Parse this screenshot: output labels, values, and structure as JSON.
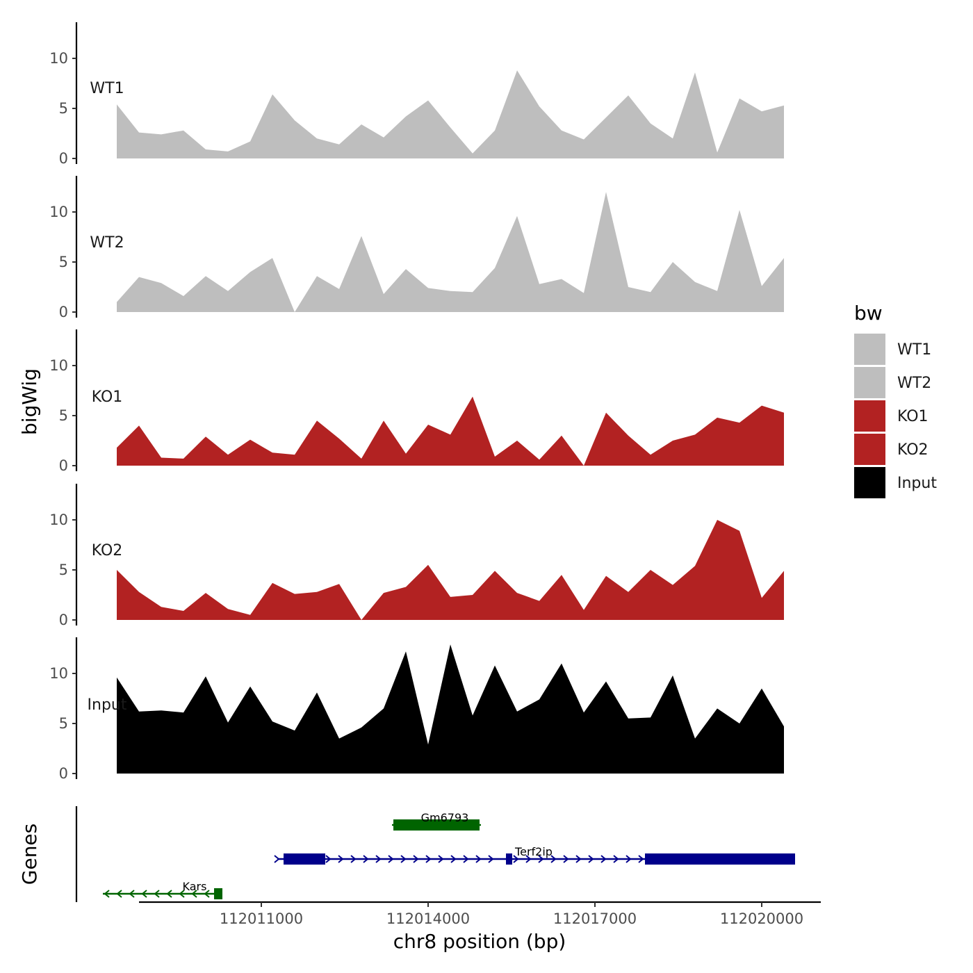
{
  "chart_data": {
    "type": "area",
    "title": "",
    "ylabel": "bigWig",
    "xlabel": "chr8 position (bp)",
    "xlim": [
      112008200,
      112020600
    ],
    "x_ticks": [
      112011000,
      112014000,
      112017000,
      112020000
    ],
    "x_tick_labels": [
      "112011000",
      "112014000",
      "112017000",
      "112020000"
    ],
    "ylim": [
      0,
      13.5
    ],
    "y_ticks": [
      0,
      5,
      10
    ],
    "y_tick_labels": [
      "0",
      "5",
      "10"
    ],
    "x": [
      112008400,
      112008800,
      112009200,
      112009600,
      112010000,
      112010400,
      112010800,
      112011200,
      112011600,
      112012000,
      112012400,
      112012800,
      112013200,
      112013600,
      112014000,
      112014400,
      112014800,
      112015200,
      112015600,
      112016000,
      112016400,
      112016800,
      112017200,
      112017600,
      112018000,
      112018400,
      112018800,
      112019200,
      112019600,
      112020000,
      112020400
    ],
    "series": [
      {
        "name": "WT1",
        "color": "#BEBEBE",
        "values": [
          5.4,
          2.6,
          2.4,
          2.8,
          0.9,
          0.7,
          1.7,
          6.4,
          3.8,
          2.0,
          1.4,
          3.4,
          2.1,
          4.2,
          5.8,
          3.1,
          0.5,
          2.8,
          8.8,
          5.2,
          2.8,
          1.9,
          4.1,
          6.3,
          3.5,
          2.0,
          8.6,
          0.6,
          6.0,
          4.7,
          5.3
        ]
      },
      {
        "name": "WT2",
        "color": "#BEBEBE",
        "values": [
          1.0,
          3.5,
          2.9,
          1.6,
          3.6,
          2.1,
          4.0,
          5.4,
          0.0,
          3.6,
          2.3,
          7.6,
          1.8,
          4.3,
          2.4,
          2.1,
          2.0,
          4.4,
          9.6,
          2.8,
          3.3,
          1.9,
          12.0,
          2.5,
          2.0,
          5.0,
          3.0,
          2.1,
          10.2,
          2.6,
          5.4
        ]
      },
      {
        "name": "KO1",
        "color": "#B22222",
        "values": [
          1.8,
          4.0,
          0.8,
          0.7,
          2.9,
          1.1,
          2.6,
          1.3,
          1.1,
          4.5,
          2.7,
          0.7,
          4.5,
          1.2,
          4.1,
          3.1,
          6.9,
          0.9,
          2.5,
          0.6,
          3.0,
          0.0,
          5.3,
          3.0,
          1.1,
          2.5,
          3.1,
          4.8,
          4.3,
          6.0,
          5.3
        ]
      },
      {
        "name": "KO2",
        "color": "#B22222",
        "values": [
          5.0,
          2.8,
          1.3,
          0.9,
          2.7,
          1.1,
          0.5,
          3.7,
          2.6,
          2.8,
          3.6,
          0.0,
          2.7,
          3.3,
          5.5,
          2.3,
          2.5,
          4.9,
          2.7,
          1.9,
          4.5,
          1.0,
          4.4,
          2.8,
          5.0,
          3.5,
          5.4,
          10.0,
          8.9,
          2.2,
          4.9
        ]
      },
      {
        "name": "Input",
        "color": "#000000",
        "values": [
          9.6,
          6.2,
          6.3,
          6.1,
          9.7,
          5.1,
          8.7,
          5.2,
          4.3,
          8.1,
          3.5,
          4.6,
          6.5,
          12.2,
          2.9,
          12.9,
          5.8,
          10.8,
          6.2,
          7.4,
          11.0,
          6.1,
          9.2,
          5.5,
          5.6,
          9.8,
          3.5,
          6.5,
          5.0,
          8.5,
          4.7
        ]
      }
    ],
    "genes": [
      {
        "name": "Gm6793",
        "start": 112013350,
        "end": 112014950,
        "strand": "+",
        "color": "#006400",
        "row": 1
      },
      {
        "name": "Terf2ip",
        "start": 112011300,
        "end": 112020600,
        "strand": "+",
        "color": "#00008B",
        "row": 2
      },
      {
        "name": "Kars",
        "start": 112008150,
        "end": 112010300,
        "strand": "-",
        "color": "#006400",
        "row": 3
      }
    ],
    "genes_panel_label": "Genes",
    "legend": {
      "title": "bw",
      "position": "right",
      "items": [
        {
          "label": "WT1",
          "color": "#BEBEBE"
        },
        {
          "label": "WT2",
          "color": "#BEBEBE"
        },
        {
          "label": "KO1",
          "color": "#B22222"
        },
        {
          "label": "KO2",
          "color": "#B22222"
        },
        {
          "label": "Input",
          "color": "#000000"
        }
      ]
    }
  }
}
